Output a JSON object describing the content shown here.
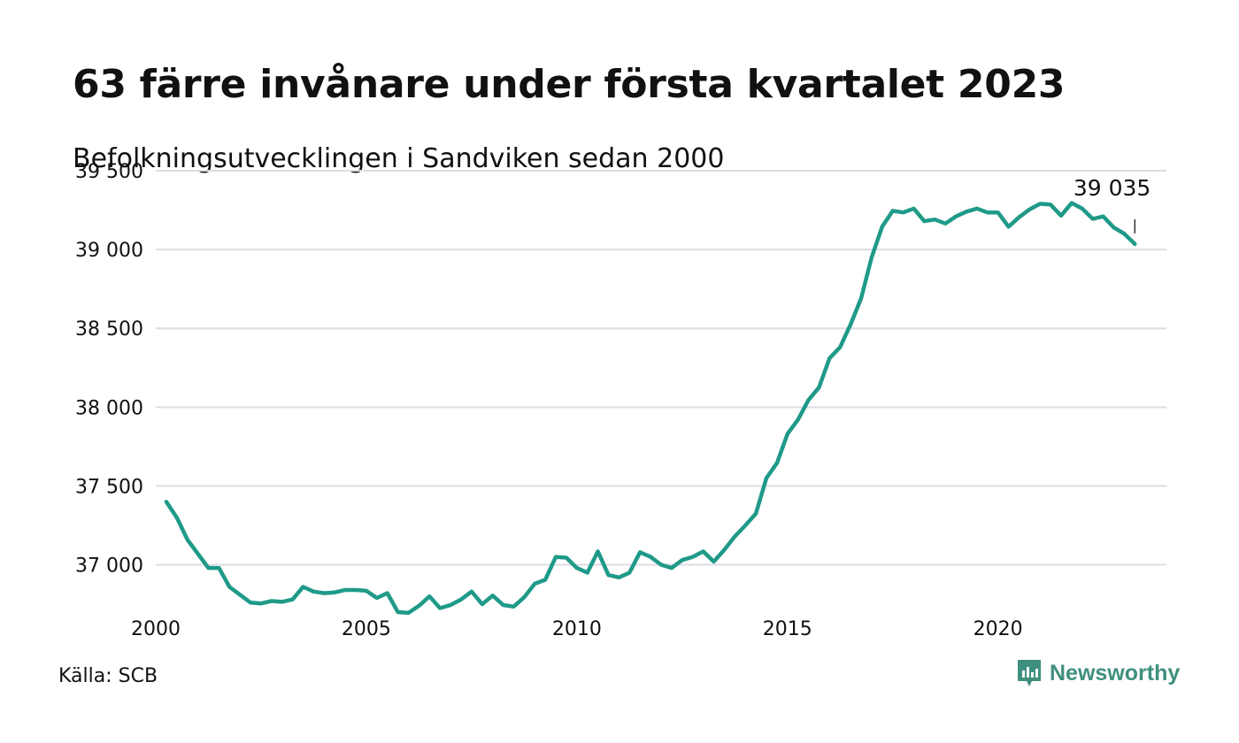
{
  "title": "63 färre invånare under första kvartalet 2023",
  "subtitle": "Befolkningsutvecklingen i Sandviken sedan 2000",
  "source": "Källa: SCB",
  "brand": {
    "name": "Newsworthy",
    "icon": "newsworthy-logo-icon",
    "color": "#3f8f7e"
  },
  "colors": {
    "line": "#1f9a88",
    "grid": "#dcdde3"
  },
  "chart_data": {
    "type": "line",
    "title": "63 färre invånare under första kvartalet 2023",
    "subtitle": "Befolkningsutvecklingen i Sandviken sedan 2000",
    "xlabel": "",
    "ylabel": "",
    "xlim": [
      2000,
      2024
    ],
    "ylim": [
      36700,
      39500
    ],
    "grid": true,
    "legend": "none",
    "x_ticks": [
      2000,
      2005,
      2010,
      2015,
      2020
    ],
    "x_tick_labels": [
      "2000",
      "2005",
      "2010",
      "2015",
      "2020"
    ],
    "y_ticks": [
      37000,
      37500,
      38000,
      38500,
      39000,
      39500
    ],
    "y_tick_labels": [
      "37 000",
      "37 500",
      "38 000",
      "38 500",
      "39 000",
      "39 500"
    ],
    "annotation": {
      "text": "39 035",
      "x": 2023.25,
      "y": 39035
    },
    "series": [
      {
        "x": [
          2000.25,
          2000.5,
          2000.75,
          2001,
          2001.25,
          2001.5,
          2001.75,
          2002,
          2002.25,
          2002.5,
          2002.75,
          2003,
          2003.25,
          2003.5,
          2003.75,
          2004,
          2004.25,
          2004.5,
          2004.75,
          2005,
          2005.25,
          2005.5,
          2005.75,
          2006,
          2006.25,
          2006.5,
          2006.75,
          2007,
          2007.25,
          2007.5,
          2007.75,
          2008,
          2008.25,
          2008.5,
          2008.75,
          2009,
          2009.25,
          2009.5,
          2009.75,
          2010,
          2010.25,
          2010.5,
          2010.75,
          2011,
          2011.25,
          2011.5,
          2011.75,
          2012,
          2012.25,
          2012.5,
          2012.75,
          2013,
          2013.25,
          2013.5,
          2013.75,
          2014,
          2014.25,
          2014.5,
          2014.75,
          2015,
          2015.25,
          2015.5,
          2015.75,
          2016,
          2016.25,
          2016.5,
          2016.75,
          2017,
          2017.25,
          2017.5,
          2017.75,
          2018,
          2018.25,
          2018.5,
          2018.75,
          2019,
          2019.25,
          2019.5,
          2019.75,
          2020,
          2020.25,
          2020.5,
          2020.75,
          2021,
          2021.25,
          2021.5,
          2021.75,
          2022,
          2022.25,
          2022.5,
          2022.75,
          2023,
          2023.25
        ],
        "values": [
          37400,
          37300,
          37160,
          37070,
          36980,
          36980,
          36860,
          36810,
          36760,
          36755,
          36770,
          36765,
          36780,
          36860,
          36830,
          36820,
          36825,
          36840,
          36840,
          36835,
          36790,
          36820,
          36700,
          36695,
          36740,
          36800,
          36725,
          36745,
          36780,
          36830,
          36750,
          36805,
          36745,
          36735,
          36795,
          36880,
          36905,
          37050,
          37045,
          36980,
          36950,
          37085,
          36935,
          36920,
          36950,
          37080,
          37050,
          37000,
          36980,
          37030,
          37050,
          37085,
          37020,
          37095,
          37180,
          37250,
          37325,
          37550,
          37645,
          37830,
          37920,
          38045,
          38125,
          38310,
          38380,
          38525,
          38690,
          38950,
          39145,
          39245,
          39235,
          39260,
          39180,
          39190,
          39165,
          39210,
          39240,
          39260,
          39235,
          39235,
          39145,
          39205,
          39255,
          39290,
          39285,
          39215,
          39295,
          39260,
          39195,
          39210,
          39140,
          39100,
          39035
        ]
      }
    ]
  }
}
